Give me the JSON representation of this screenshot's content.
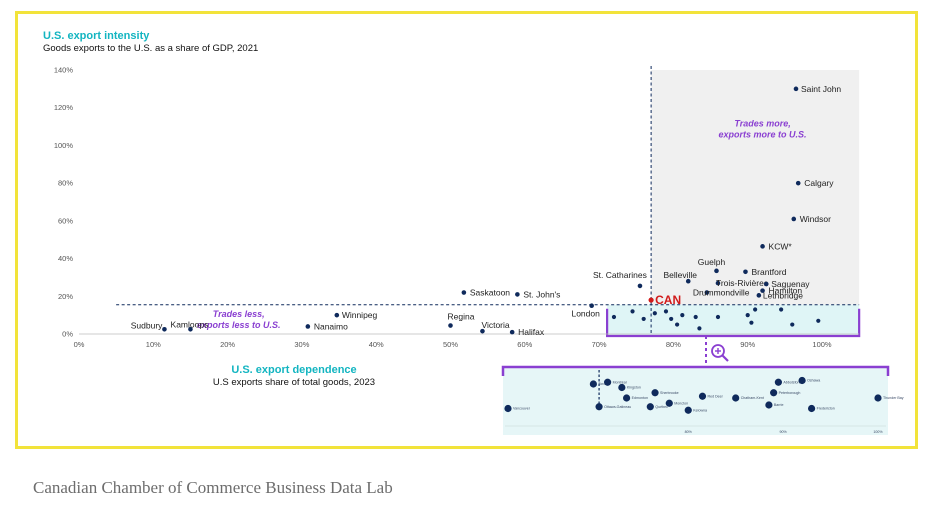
{
  "caption": "Canadian Chamber of Commerce Business Data Lab",
  "colors": {
    "frame": "#f2e33a",
    "teal": "#13b5c1",
    "dot": "#0f2a5c",
    "purple": "#8a3fd1",
    "can": "#d11a1a",
    "shade": "#f0f0f0"
  },
  "chart_data": {
    "type": "scatter",
    "title": "U.S. export intensity",
    "subtitle": "Goods exports to the U.S. as a share of GDP, 2021",
    "xlabel": "U.S. export dependence",
    "xlabel_sub": "U.S exports share of total goods, 2023",
    "xlim": [
      0,
      1.05
    ],
    "ylim": [
      0,
      1.4
    ],
    "x_ticks": [
      0,
      0.1,
      0.2,
      0.3,
      0.4,
      0.5,
      0.6,
      0.7,
      0.8,
      0.9,
      1.0
    ],
    "x_tick_labels": [
      "0%",
      "10%",
      "20%",
      "30%",
      "40%",
      "50%",
      "60%",
      "70%",
      "80%",
      "90%",
      "100%"
    ],
    "y_ticks": [
      0,
      0.2,
      0.4,
      0.6,
      0.8,
      1.0,
      1.2,
      1.4
    ],
    "y_tick_labels": [
      "0%",
      "20%",
      "40%",
      "60%",
      "80%",
      "100%",
      "120%",
      "140%"
    ],
    "reference": {
      "label": "CAN",
      "x": 0.77,
      "y": 0.18
    },
    "annotations": {
      "upper_right": [
        "Trades more,",
        "exports more to U.S."
      ],
      "lower_left": [
        "Trades less,",
        "exports less to U.S."
      ]
    },
    "points": [
      {
        "label": "Saint John",
        "x": 0.965,
        "y": 1.3
      },
      {
        "label": "Calgary",
        "x": 0.968,
        "y": 0.8
      },
      {
        "label": "Windsor",
        "x": 0.962,
        "y": 0.61
      },
      {
        "label": "KCW*",
        "x": 0.92,
        "y": 0.465
      },
      {
        "label": "Guelph",
        "x": 0.858,
        "y": 0.335
      },
      {
        "label": "Brantford",
        "x": 0.897,
        "y": 0.33
      },
      {
        "label": "Belleville",
        "x": 0.82,
        "y": 0.28
      },
      {
        "label": "Trois-Rivières",
        "x": 0.86,
        "y": 0.27
      },
      {
        "label": "Saguenay",
        "x": 0.925,
        "y": 0.265
      },
      {
        "label": "Hamilton",
        "x": 0.92,
        "y": 0.23
      },
      {
        "label": "Drummondville",
        "x": 0.845,
        "y": 0.22
      },
      {
        "label": "Lethbridge",
        "x": 0.915,
        "y": 0.205
      },
      {
        "label": "St. Catharines",
        "x": 0.755,
        "y": 0.255
      },
      {
        "label": "Saskatoon",
        "x": 0.518,
        "y": 0.22
      },
      {
        "label": "St. John's",
        "x": 0.59,
        "y": 0.21
      },
      {
        "label": "London",
        "x": 0.69,
        "y": 0.15
      },
      {
        "label": "Winnipeg",
        "x": 0.347,
        "y": 0.1
      },
      {
        "label": "Regina",
        "x": 0.5,
        "y": 0.045
      },
      {
        "label": "Victoria",
        "x": 0.543,
        "y": 0.015
      },
      {
        "label": "Halifax",
        "x": 0.583,
        "y": 0.01
      },
      {
        "label": "Sudbury",
        "x": 0.115,
        "y": 0.025
      },
      {
        "label": "Kamloops",
        "x": 0.15,
        "y": 0.025
      },
      {
        "label": "Nanaimo",
        "x": 0.308,
        "y": 0.04
      }
    ],
    "cluster_points": [
      {
        "x": 0.72,
        "y": 0.09
      },
      {
        "x": 0.745,
        "y": 0.12
      },
      {
        "x": 0.76,
        "y": 0.08
      },
      {
        "x": 0.775,
        "y": 0.11
      },
      {
        "x": 0.79,
        "y": 0.12
      },
      {
        "x": 0.797,
        "y": 0.08
      },
      {
        "x": 0.805,
        "y": 0.05
      },
      {
        "x": 0.812,
        "y": 0.1
      },
      {
        "x": 0.83,
        "y": 0.09
      },
      {
        "x": 0.835,
        "y": 0.03
      },
      {
        "x": 0.86,
        "y": 0.09
      },
      {
        "x": 0.9,
        "y": 0.1
      },
      {
        "x": 0.905,
        "y": 0.06
      },
      {
        "x": 0.91,
        "y": 0.13
      },
      {
        "x": 0.945,
        "y": 0.13
      },
      {
        "x": 0.96,
        "y": 0.05
      },
      {
        "x": 0.995,
        "y": 0.07
      }
    ],
    "inset": {
      "x_tick_labels": [
        "80%",
        "90%",
        "100%"
      ],
      "points": [
        {
          "label": "Toronto",
          "x": 0.7,
          "y": 0.1
        },
        {
          "label": "Vancouver",
          "x": 0.61,
          "y": 0.03
        },
        {
          "label": "Montréal",
          "x": 0.715,
          "y": 0.105
        },
        {
          "label": "Kingston",
          "x": 0.73,
          "y": 0.09
        },
        {
          "label": "Edmonton",
          "x": 0.735,
          "y": 0.06
        },
        {
          "label": "Ottawa-Gatineau",
          "x": 0.706,
          "y": 0.035
        },
        {
          "label": "Sherbrooke",
          "x": 0.765,
          "y": 0.075
        },
        {
          "label": "Québec",
          "x": 0.76,
          "y": 0.035
        },
        {
          "label": "Moncton",
          "x": 0.78,
          "y": 0.045
        },
        {
          "label": "Kelowna",
          "x": 0.8,
          "y": 0.025
        },
        {
          "label": "Red Deer",
          "x": 0.815,
          "y": 0.065
        },
        {
          "label": "Chatham-Kent",
          "x": 0.85,
          "y": 0.06
        },
        {
          "label": "Abbotsford",
          "x": 0.895,
          "y": 0.105
        },
        {
          "label": "Peterborough",
          "x": 0.89,
          "y": 0.075
        },
        {
          "label": "Barrie",
          "x": 0.885,
          "y": 0.04
        },
        {
          "label": "Oshawa",
          "x": 0.92,
          "y": 0.11
        },
        {
          "label": "Fredericton",
          "x": 0.93,
          "y": 0.03
        },
        {
          "label": "Thunder Bay",
          "x": 1.0,
          "y": 0.06
        }
      ]
    }
  }
}
